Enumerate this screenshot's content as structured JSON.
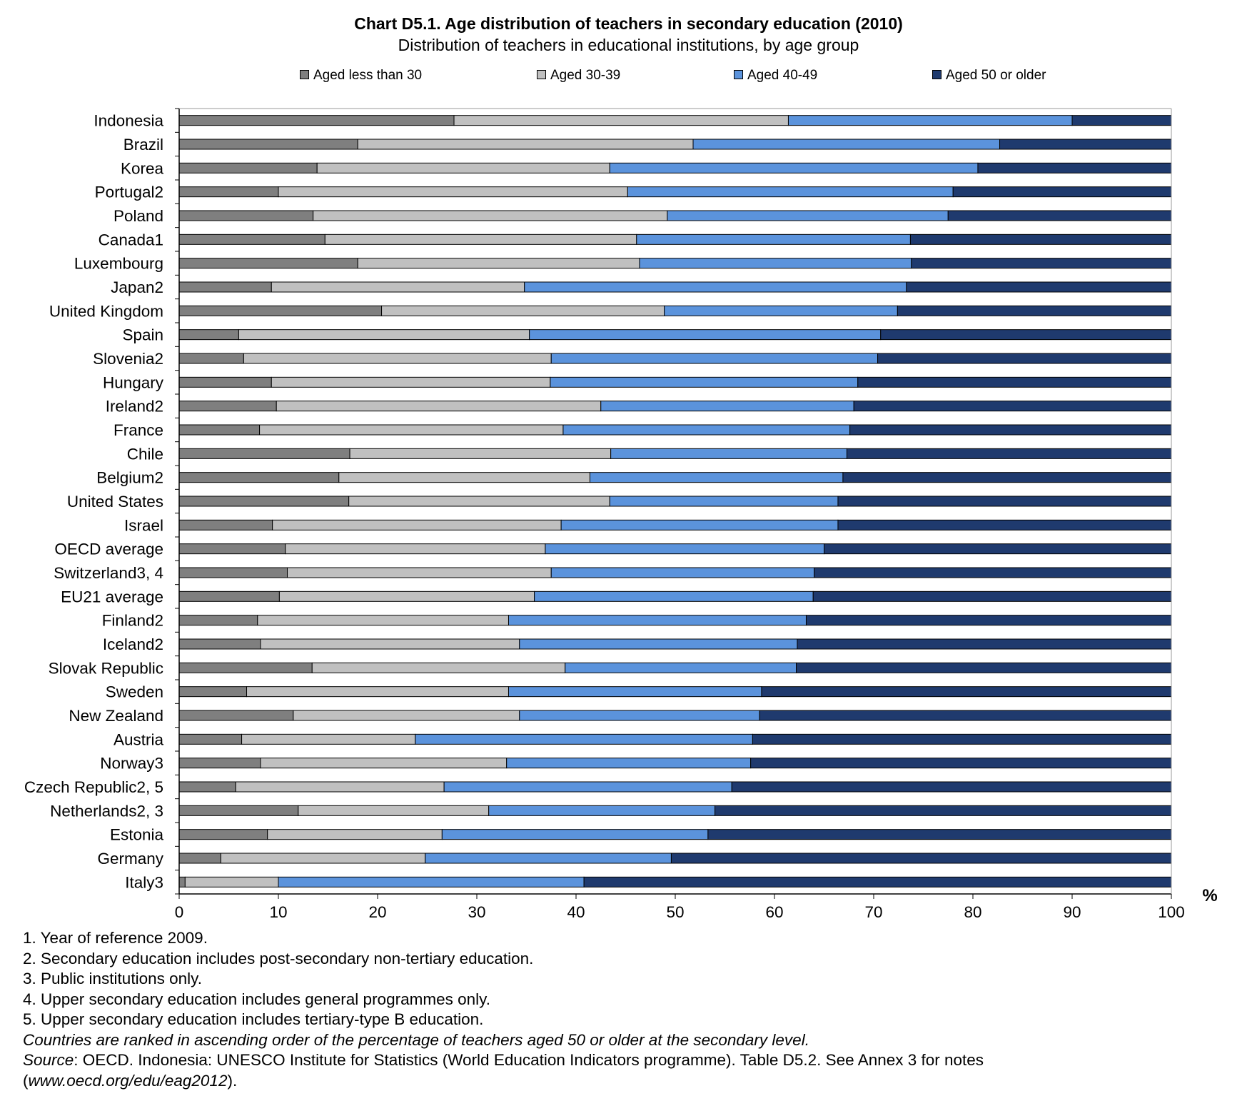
{
  "title": "Chart D5.1. Age distribution of teachers in secondary education (2010)",
  "subtitle": "Distribution of teachers in educational institutions, by age group",
  "colors": {
    "Aged less than 30": "#7f7f7f",
    "Aged 30-39": "#c0c0c0",
    "Aged 40-49": "#5b93dc",
    "Aged 50 or older": "#1f3a6e"
  },
  "chart_data": {
    "type": "bar",
    "orientation": "horizontal",
    "stacked": true,
    "title": "Chart D5.1. Age distribution of teachers in secondary education (2010)",
    "subtitle": "Distribution of teachers in educational institutions, by age group",
    "xlabel": "%",
    "xlim": [
      0,
      100
    ],
    "xticks": [
      0,
      10,
      20,
      30,
      40,
      50,
      60,
      70,
      80,
      90,
      100
    ],
    "legend_position": "top",
    "categories": [
      "Indonesia",
      "Brazil",
      "Korea",
      "Portugal2",
      "Poland",
      "Canada1",
      "Luxembourg",
      "Japan2",
      "United Kingdom",
      "Spain",
      "Slovenia2",
      "Hungary",
      "Ireland2",
      "France",
      "Chile",
      "Belgium2",
      "United States",
      "Israel",
      "OECD average",
      "Switzerland3, 4",
      "EU21 average",
      "Finland2",
      "Iceland2",
      "Slovak Republic",
      "Sweden",
      "New Zealand",
      "Austria",
      "Norway3",
      "Czech Republic2, 5",
      "Netherlands2, 3",
      "Estonia",
      "Germany",
      "Italy3"
    ],
    "series": [
      {
        "name": "Aged less than 30",
        "values": [
          27.7,
          18.0,
          13.9,
          10.0,
          13.5,
          14.7,
          18.0,
          9.3,
          20.4,
          6.0,
          6.5,
          9.3,
          9.8,
          8.1,
          17.2,
          16.1,
          17.1,
          9.4,
          10.7,
          10.9,
          10.1,
          7.9,
          8.2,
          13.4,
          6.8,
          11.5,
          6.3,
          8.2,
          5.7,
          12.0,
          8.9,
          4.2,
          0.6
        ]
      },
      {
        "name": "Aged 30-39",
        "values": [
          33.7,
          33.8,
          29.5,
          35.2,
          35.7,
          31.4,
          28.4,
          25.5,
          28.5,
          29.3,
          31.0,
          28.1,
          32.7,
          30.6,
          26.3,
          25.3,
          26.3,
          29.1,
          26.2,
          26.6,
          25.7,
          25.3,
          26.1,
          25.5,
          26.4,
          22.8,
          17.5,
          24.8,
          21.0,
          19.2,
          17.6,
          20.6,
          9.4
        ]
      },
      {
        "name": "Aged 40-49",
        "values": [
          28.6,
          30.9,
          37.1,
          32.8,
          28.3,
          27.6,
          27.4,
          38.5,
          23.5,
          35.4,
          32.9,
          31.0,
          25.5,
          28.9,
          23.8,
          25.5,
          23.0,
          27.9,
          28.1,
          26.5,
          28.1,
          30.0,
          28.0,
          23.3,
          25.5,
          24.2,
          34.0,
          24.6,
          29.0,
          22.8,
          26.8,
          24.8,
          30.8
        ]
      },
      {
        "name": "Aged 50 or older",
        "values": [
          10.0,
          17.3,
          19.5,
          22.0,
          22.5,
          26.3,
          26.2,
          26.7,
          27.6,
          29.3,
          29.6,
          31.6,
          32.0,
          32.4,
          32.7,
          33.1,
          33.6,
          33.6,
          35.0,
          36.0,
          36.1,
          36.8,
          37.7,
          37.8,
          41.3,
          41.5,
          42.2,
          42.4,
          44.3,
          46.0,
          46.7,
          50.4,
          59.2
        ]
      }
    ]
  },
  "notes": [
    "1. Year of reference 2009.",
    "2. Secondary education includes post-secondary non-tertiary education.",
    "3. Public institutions only.",
    "4. Upper secondary education includes general programmes only.",
    "5. Upper secondary education includes tertiary-type B education."
  ],
  "ranking_note": "Countries are ranked in ascending order of the percentage of teachers aged  50 or older at the  secondary level.",
  "source": {
    "label": "Source",
    "text": ": OECD. Indonesia: UNESCO Institute for Statistics (World Education Indicators programme). Table D5.2. See Annex 3 for notes",
    "url_line": "(www.oecd.org/edu/eag2012)."
  }
}
